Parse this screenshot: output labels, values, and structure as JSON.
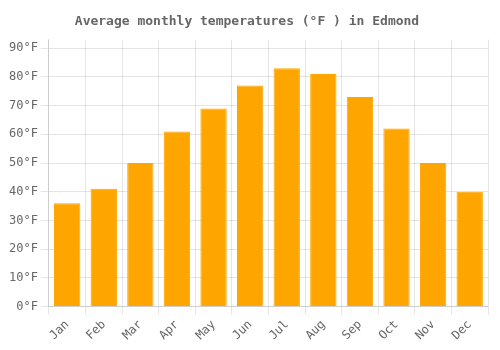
{
  "chart_data": {
    "type": "bar",
    "title": "Average monthly temperatures (°F ) in Edmond",
    "categories": [
      "Jan",
      "Feb",
      "Mar",
      "Apr",
      "May",
      "Jun",
      "Jul",
      "Aug",
      "Sep",
      "Oct",
      "Nov",
      "Dec"
    ],
    "values": [
      36,
      41,
      50,
      61,
      69,
      77,
      83,
      81,
      73,
      62,
      50,
      40
    ],
    "color": "#FFA500",
    "ylim": [
      0,
      93
    ],
    "yticks": [
      {
        "value": 0,
        "label": "0°F"
      },
      {
        "value": 10,
        "label": "10°F"
      },
      {
        "value": 20,
        "label": "20°F"
      },
      {
        "value": 30,
        "label": "30°F"
      },
      {
        "value": 40,
        "label": "40°F"
      },
      {
        "value": 50,
        "label": "50°F"
      },
      {
        "value": 60,
        "label": "60°F"
      },
      {
        "value": 70,
        "label": "70°F"
      },
      {
        "value": 80,
        "label": "80°F"
      },
      {
        "value": 90,
        "label": "90°F"
      }
    ],
    "grid": true
  }
}
